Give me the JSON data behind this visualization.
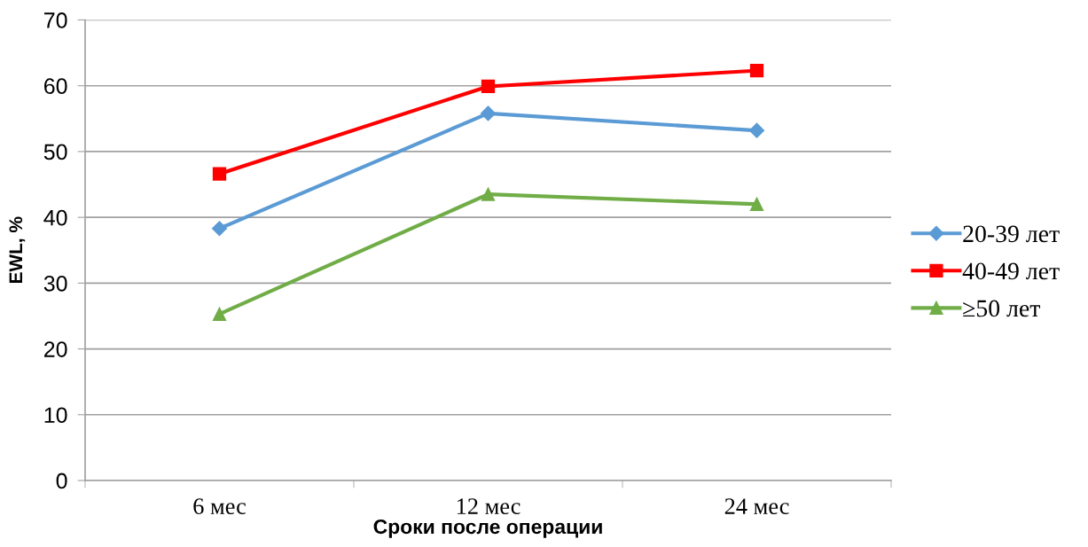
{
  "chart_data": {
    "type": "line",
    "xlabel": "Сроки после операции",
    "ylabel": "EWL, %",
    "categories": [
      "6 мес",
      "12 мес",
      "24 мес"
    ],
    "series": [
      {
        "name": "20-39 лет",
        "color": "#5b9bd5",
        "marker": "diamond",
        "values": [
          38.3,
          55.8,
          53.2
        ]
      },
      {
        "name": "40-49 лет",
        "color": "#ff0000",
        "marker": "square",
        "values": [
          46.6,
          59.9,
          62.3
        ]
      },
      {
        "name": "≥50 лет",
        "color": "#70ad47",
        "marker": "triangle",
        "values": [
          25.3,
          43.5,
          42.0
        ]
      }
    ],
    "ylim": [
      0,
      70
    ],
    "yticks": [
      0,
      10,
      20,
      30,
      40,
      50,
      60,
      70
    ],
    "grid": "y",
    "legend": "right",
    "line_style": "solid"
  }
}
